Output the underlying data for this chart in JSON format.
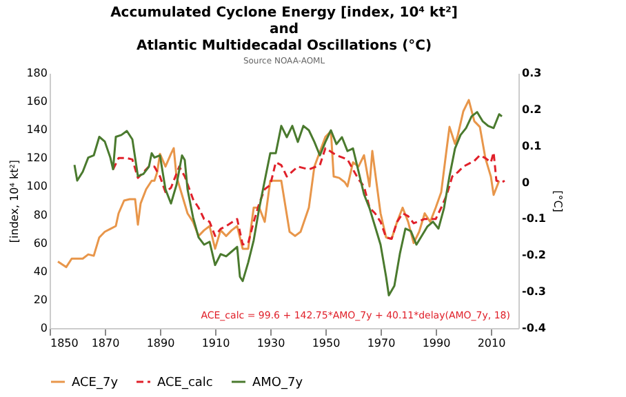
{
  "chart_data": {
    "type": "line",
    "title": "Accumulated Cyclone Energy [index, 10⁴ kt²]\nand\nAtlantic Multidecadal Oscillations (°C)",
    "subtitle": "Source NOAA-AOML",
    "ylabel": "[index, 10⁴ kt²]",
    "y2label": "[°C]",
    "xlim": [
      1850,
      2020
    ],
    "xticks": [
      1850,
      1870,
      1890,
      1910,
      1930,
      1950,
      1970,
      1990,
      2010
    ],
    "ylim": [
      0,
      180
    ],
    "yticks": [
      0,
      20,
      40,
      60,
      80,
      100,
      120,
      140,
      160,
      180
    ],
    "y2lim": [
      -0.4,
      0.3
    ],
    "y2ticks": [
      -0.4,
      -0.3,
      -0.2,
      -0.1,
      0,
      0.1,
      0.2,
      0.3
    ],
    "grid": false,
    "legend": "bottom",
    "marker": "none",
    "annotations": [
      "ACE_calc = 99.6 + 142.75*AMO_7y + 40.11*delay(AMO_7y, 18)"
    ],
    "series": [
      {
        "name": "ACE_7y",
        "color": "#e8964a",
        "line_style": "solid",
        "x": [
          1853,
          1856,
          1858,
          1862,
          1864,
          1866,
          1868,
          1870,
          1872,
          1874,
          1875,
          1877,
          1879,
          1881,
          1882,
          1883,
          1885,
          1887,
          1888,
          1889,
          1890,
          1892,
          1894,
          1895,
          1896,
          1898,
          1900,
          1902,
          1904,
          1906,
          1908,
          1910,
          1912,
          1914,
          1916,
          1918,
          1920,
          1922,
          1924,
          1926,
          1928,
          1930,
          1934,
          1937,
          1939,
          1941,
          1944,
          1946,
          1950,
          1952,
          1953,
          1955,
          1957,
          1958,
          1960,
          1962,
          1964,
          1966,
          1967,
          1970,
          1972,
          1974,
          1976,
          1978,
          1980,
          1982,
          1984,
          1986,
          1988,
          1990,
          1992,
          1994,
          1995,
          1997,
          1998,
          2000,
          2002,
          2004,
          2006,
          2008,
          2010,
          2011,
          2013
        ],
        "values": [
          47,
          43,
          49,
          49,
          52,
          51,
          64,
          68,
          70,
          72,
          81,
          90,
          91,
          91,
          73,
          88,
          98,
          104,
          104,
          110,
          123,
          114,
          123,
          127,
          107,
          94,
          81,
          75,
          65,
          69,
          72,
          56,
          69,
          65,
          69,
          72,
          56,
          56,
          85,
          85,
          75,
          104,
          104,
          68,
          65,
          68,
          85,
          114,
          135,
          139,
          107,
          106,
          103,
          100,
          117,
          114,
          122,
          100,
          125,
          81,
          64,
          63,
          75,
          85,
          75,
          60,
          68,
          81,
          75,
          85,
          96,
          127,
          142,
          130,
          136,
          153,
          161,
          146,
          142,
          120,
          107,
          94,
          104
        ]
      },
      {
        "name": "ACE_calc",
        "color": "#e0202a",
        "line_style": "dashed",
        "x": [
          1873,
          1875,
          1878,
          1880,
          1882,
          1884,
          1886,
          1888,
          1890,
          1892,
          1894,
          1897,
          1899,
          1902,
          1904,
          1906,
          1908,
          1910,
          1912,
          1914,
          1918,
          1920,
          1922,
          1924,
          1926,
          1928,
          1930,
          1932,
          1934,
          1936,
          1940,
          1944,
          1948,
          1950,
          1954,
          1958,
          1960,
          1962,
          1964,
          1966,
          1968,
          1970,
          1972,
          1974,
          1976,
          1978,
          1980,
          1982,
          1986,
          1990,
          1992,
          1994,
          1996,
          1998,
          2000,
          2004,
          2006,
          2008,
          2010,
          2011,
          2012,
          2014,
          2015
        ],
        "values": [
          112,
          120,
          120,
          119,
          106,
          110,
          114,
          114,
          107,
          96,
          99,
          114,
          107,
          91,
          85,
          77,
          75,
          65,
          70,
          72,
          77,
          59,
          60,
          75,
          88,
          98,
          101,
          117,
          115,
          107,
          114,
          112,
          115,
          127,
          122,
          119,
          112,
          105,
          100,
          85,
          81,
          75,
          64,
          63,
          75,
          81,
          79,
          74,
          77,
          77,
          85,
          94,
          107,
          110,
          114,
          118,
          122,
          120,
          117,
          124,
          104,
          103,
          104
        ]
      },
      {
        "name": "AMO_7y",
        "color": "#4a7a2e",
        "line_style": "solid",
        "axis": "y2",
        "x": [
          1859,
          1860,
          1862,
          1864,
          1866,
          1868,
          1870,
          1872,
          1873,
          1874,
          1876,
          1878,
          1880,
          1882,
          1884,
          1886,
          1887,
          1888,
          1890,
          1892,
          1894,
          1896,
          1898,
          1899,
          1900,
          1902,
          1904,
          1906,
          1908,
          1910,
          1912,
          1914,
          1916,
          1918,
          1919,
          1920,
          1922,
          1924,
          1926,
          1928,
          1930,
          1932,
          1934,
          1936,
          1938,
          1940,
          1942,
          1944,
          1946,
          1948,
          1950,
          1952,
          1954,
          1956,
          1958,
          1960,
          1962,
          1964,
          1966,
          1968,
          1970,
          1972,
          1973,
          1975,
          1977,
          1979,
          1981,
          1983,
          1985,
          1987,
          1989,
          1991,
          1993,
          1995,
          1997,
          1999,
          2001,
          2003,
          2005,
          2007,
          2009,
          2011,
          2013,
          2014
        ],
        "values": [
          0.048,
          0.005,
          0.029,
          0.068,
          0.074,
          0.125,
          0.112,
          0.068,
          0.036,
          0.125,
          0.13,
          0.141,
          0.118,
          0.017,
          0.023,
          0.043,
          0.08,
          0.068,
          0.074,
          -0.019,
          -0.058,
          -0.007,
          0.074,
          0.061,
          -0.019,
          -0.096,
          -0.151,
          -0.171,
          -0.163,
          -0.227,
          -0.197,
          -0.203,
          -0.19,
          -0.177,
          -0.259,
          -0.271,
          -0.22,
          -0.159,
          -0.071,
          0.005,
          0.08,
          0.08,
          0.155,
          0.124,
          0.155,
          0.111,
          0.155,
          0.143,
          0.111,
          0.074,
          0.111,
          0.143,
          0.105,
          0.124,
          0.086,
          0.093,
          0.03,
          -0.033,
          -0.071,
          -0.121,
          -0.171,
          -0.259,
          -0.31,
          -0.284,
          -0.196,
          -0.127,
          -0.134,
          -0.171,
          -0.146,
          -0.121,
          -0.108,
          -0.127,
          -0.071,
          0.017,
          0.093,
          0.13,
          0.149,
          0.181,
          0.193,
          0.168,
          0.155,
          0.149,
          0.187,
          0.181
        ]
      }
    ]
  }
}
